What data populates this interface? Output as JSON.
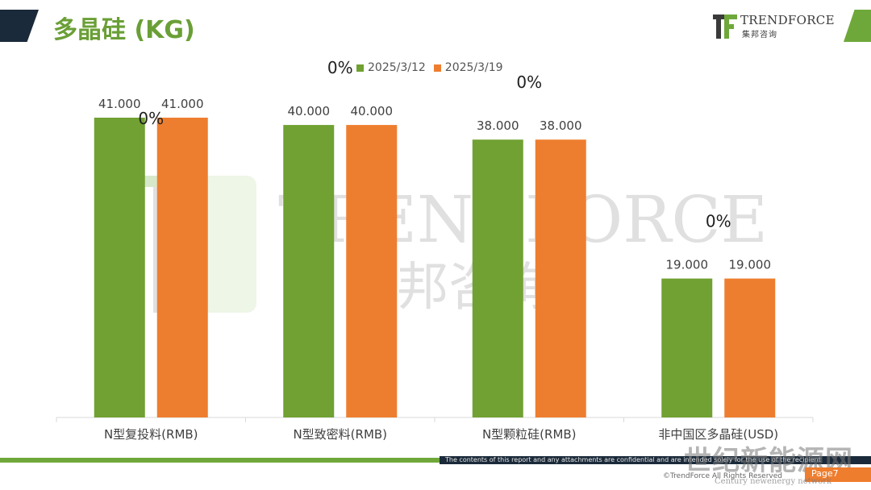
{
  "header": {
    "title": "多晶硅 (KG)",
    "brand_name": "TRENDFORCE",
    "brand_sub": "集邦咨询"
  },
  "colors": {
    "series1": "#70a132",
    "series2": "#ee7e2f",
    "accent_green": "#6fa83a",
    "dark": "#1b2a3a"
  },
  "chart_data": {
    "type": "bar",
    "categories": [
      "N型复投料(RMB)",
      "N型致密料(RMB)",
      "N型颗粒硅(RMB)",
      "非中国区多晶硅(USD)"
    ],
    "series": [
      {
        "name": "2025/3/12",
        "values": [
          41.0,
          40.0,
          38.0,
          19.0
        ]
      },
      {
        "name": "2025/3/19",
        "values": [
          41.0,
          40.0,
          38.0,
          19.0
        ]
      }
    ],
    "data_labels": [
      [
        "41.000",
        "40.000",
        "38.000",
        "19.000"
      ],
      [
        "41.000",
        "40.000",
        "38.000",
        "19.000"
      ]
    ],
    "change_labels": [
      "0%",
      "0%",
      "0%",
      "0%"
    ],
    "ylim": [
      0,
      50
    ],
    "legend_position": "top-center",
    "grid": false
  },
  "watermark": {
    "text": "TRENDFORCE",
    "sub": "集邦咨询"
  },
  "footer": {
    "note": "The contents of this report and any attachments are confidential and are intended solely for the use of the recipient",
    "copyright": "©TrendForce All Rights Reserved",
    "page": "Page7",
    "stamp": "世纪新能源网",
    "stamp_sub": "Century newenergy network"
  }
}
